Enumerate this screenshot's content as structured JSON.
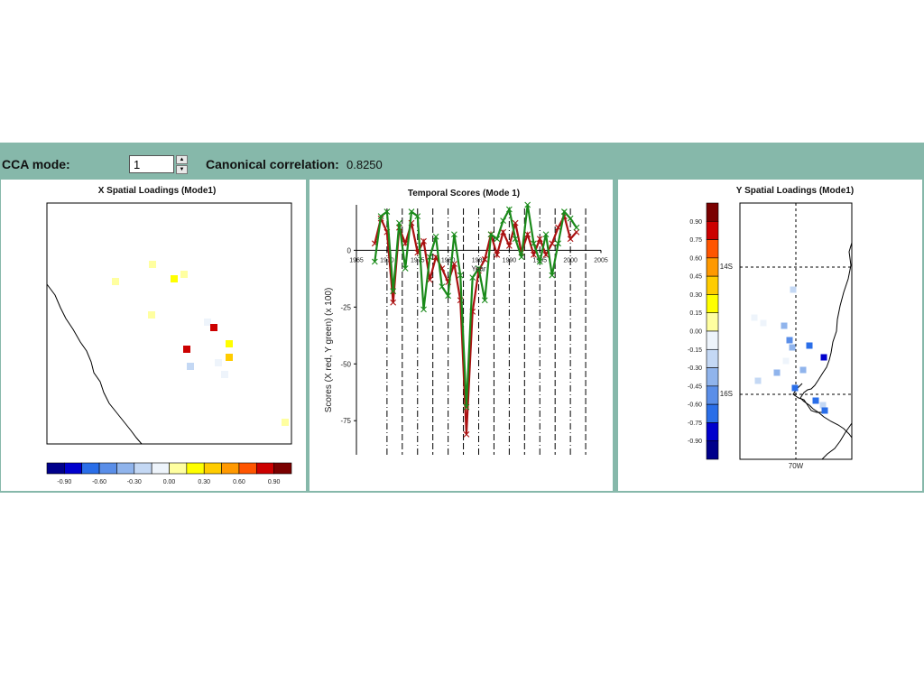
{
  "toolbar": {
    "mode_label": "CCA mode:",
    "mode_value": "1",
    "corr_label": "Canonical correlation:",
    "corr_value": "0.8250"
  },
  "colors": {
    "frame": "#86b8aa",
    "palette": [
      "#00008b",
      "#0000cd",
      "#2a6ee8",
      "#5a8ee8",
      "#90b4ec",
      "#c4d8f4",
      "#eef4fb",
      "#ffffa0",
      "#ffff00",
      "#ffcc00",
      "#ff9900",
      "#ff5500",
      "#cc0000",
      "#7a0000"
    ],
    "x_series": "#aa1111",
    "y_series": "#1a8a1a"
  },
  "x_panel": {
    "title": "X Spatial Loadings (Mode1)",
    "colorbar_labels": [
      "-0.90",
      "-0.60",
      "-0.30",
      "0.00",
      "0.30",
      "0.60",
      "0.90"
    ],
    "points": [
      {
        "id": "p1",
        "c": 7
      },
      {
        "id": "p2",
        "c": 7
      },
      {
        "id": "p3",
        "c": 8
      },
      {
        "id": "p4",
        "c": 7
      },
      {
        "id": "p5",
        "c": 7
      },
      {
        "id": "p6",
        "c": 6
      },
      {
        "id": "p7",
        "c": 6
      },
      {
        "id": "p8",
        "c": 12
      },
      {
        "id": "p9",
        "c": 8
      },
      {
        "id": "p10",
        "c": 12
      },
      {
        "id": "p11",
        "c": 9
      },
      {
        "id": "p12",
        "c": 5
      },
      {
        "id": "p13",
        "c": 6
      },
      {
        "id": "p14",
        "c": 7
      }
    ]
  },
  "chart_data": {
    "type": "line",
    "title": "Temporal Scores (Mode 1)",
    "xlabel": "Year",
    "ylabel": "Scores (X red, Y green) (x 100)",
    "xlim": [
      1965,
      2005
    ],
    "ylim": [
      -90,
      20
    ],
    "x_ticks": [
      1965,
      1970,
      1975,
      1980,
      1985,
      1990,
      1995,
      2000,
      2005
    ],
    "y_ticks": [
      0,
      -25,
      -50,
      -75
    ],
    "series": [
      {
        "name": "X",
        "color": "#aa1111",
        "x": [
          1968,
          1969,
          1970,
          1971,
          1972,
          1973,
          1974,
          1975,
          1976,
          1977,
          1978,
          1979,
          1980,
          1981,
          1982,
          1983,
          1984,
          1985,
          1986,
          1987,
          1988,
          1989,
          1990,
          1991,
          1992,
          1993,
          1994,
          1995,
          1996,
          1997,
          1998,
          1999,
          2000,
          2001
        ],
        "y": [
          3,
          14,
          8,
          -23,
          10,
          3,
          12,
          -1,
          4,
          -13,
          -3,
          -8,
          -14,
          -6,
          -22,
          -81,
          -27,
          -9,
          -4,
          7,
          -2,
          8,
          2,
          12,
          -1,
          7,
          -2,
          5,
          -2,
          3,
          10,
          15,
          5,
          8
        ]
      },
      {
        "name": "Y",
        "color": "#1a8a1a",
        "x": [
          1968,
          1969,
          1970,
          1971,
          1972,
          1973,
          1974,
          1975,
          1976,
          1977,
          1978,
          1979,
          1980,
          1981,
          1982,
          1983,
          1984,
          1985,
          1986,
          1987,
          1988,
          1989,
          1990,
          1991,
          1992,
          1993,
          1994,
          1995,
          1996,
          1997,
          1998,
          1999,
          2000,
          2001
        ],
        "y": [
          -5,
          15,
          17,
          -18,
          12,
          -8,
          17,
          15,
          -26,
          -3,
          6,
          -16,
          -20,
          7,
          -11,
          -69,
          -12,
          -8,
          -22,
          7,
          5,
          13,
          18,
          5,
          -3,
          20,
          3,
          -5,
          7,
          -11,
          3,
          17,
          14,
          10
        ]
      }
    ]
  },
  "y_panel": {
    "title": "Y Spatial Loadings (Mode1)",
    "colorbar_labels": [
      "0.90",
      "0.75",
      "0.60",
      "0.45",
      "0.30",
      "0.15",
      "0.00",
      "-0.15",
      "-0.30",
      "-0.45",
      "-0.60",
      "-0.75",
      "-0.90"
    ],
    "lat_labels": [
      "14S",
      "16S"
    ],
    "lon_label": "70W",
    "points": [
      {
        "id": "q1",
        "c": 5
      },
      {
        "id": "q2",
        "c": 6
      },
      {
        "id": "q3",
        "c": 6
      },
      {
        "id": "q4",
        "c": 4
      },
      {
        "id": "q5",
        "c": 3
      },
      {
        "id": "q6",
        "c": 2
      },
      {
        "id": "q7",
        "c": 4
      },
      {
        "id": "q8",
        "c": 2
      },
      {
        "id": "q9",
        "c": 6
      },
      {
        "id": "q10",
        "c": 1
      },
      {
        "id": "q11",
        "c": 4
      },
      {
        "id": "q12",
        "c": 5
      },
      {
        "id": "q13",
        "c": 4
      },
      {
        "id": "q14",
        "c": 2
      },
      {
        "id": "q15",
        "c": 2
      },
      {
        "id": "q16",
        "c": 5
      },
      {
        "id": "q17",
        "c": 2
      }
    ]
  }
}
